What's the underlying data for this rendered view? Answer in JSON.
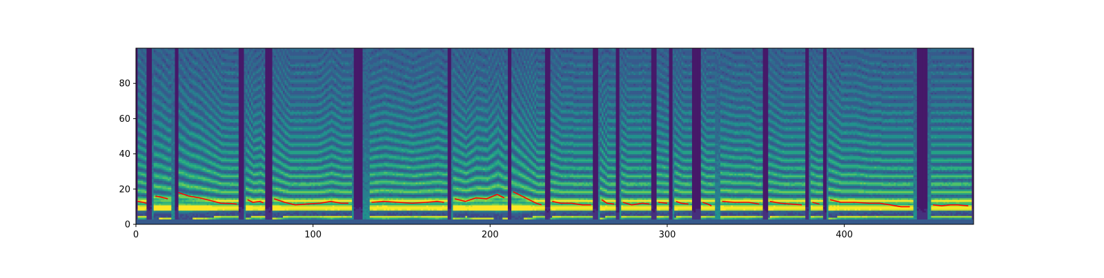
{
  "chart_data": {
    "type": "heatmap",
    "title": "",
    "xlabel": "",
    "ylabel": "",
    "xlim": [
      0,
      473
    ],
    "ylim": [
      0,
      100
    ],
    "x_ticks": [
      {
        "value": 0,
        "label": "0"
      },
      {
        "value": 100,
        "label": "100"
      },
      {
        "value": 200,
        "label": "200"
      },
      {
        "value": 300,
        "label": "300"
      },
      {
        "value": 400,
        "label": "400"
      }
    ],
    "y_ticks": [
      {
        "value": 0,
        "label": "0"
      },
      {
        "value": 20,
        "label": "20"
      },
      {
        "value": 40,
        "label": "40"
      },
      {
        "value": 60,
        "label": "60"
      },
      {
        "value": 80,
        "label": "80"
      }
    ],
    "colormap": "viridis",
    "grid": false,
    "heatmap_description": "mel spectrogram, 100 frequency bins by 473 frames",
    "pitch_series": {
      "color": "#ff0000",
      "segments": [
        [
          [
            1,
            13
          ],
          [
            4,
            12.5
          ],
          [
            6,
            12
          ]
        ],
        [
          [
            11,
            16
          ],
          [
            14,
            15.5
          ],
          [
            18,
            14.5
          ]
        ],
        [
          [
            24,
            18
          ],
          [
            30,
            16
          ],
          [
            36,
            15
          ],
          [
            42,
            13.5
          ],
          [
            48,
            12
          ],
          [
            54,
            11.8
          ],
          [
            57,
            11.5
          ]
        ],
        [
          [
            63,
            14
          ],
          [
            66,
            12.5
          ],
          [
            70,
            13
          ],
          [
            72,
            12.2
          ]
        ],
        [
          [
            78,
            14.5
          ],
          [
            84,
            12.5
          ],
          [
            90,
            11
          ],
          [
            96,
            11.5
          ],
          [
            104,
            12
          ],
          [
            110,
            13
          ],
          [
            116,
            12
          ],
          [
            120,
            12
          ]
        ],
        [
          [
            133,
            12.5
          ],
          [
            140,
            13
          ],
          [
            148,
            12.5
          ],
          [
            156,
            12
          ],
          [
            164,
            12.5
          ],
          [
            170,
            13
          ],
          [
            174,
            12.5
          ]
        ],
        [
          [
            180,
            14.5
          ],
          [
            186,
            13
          ],
          [
            192,
            15
          ],
          [
            198,
            14.5
          ],
          [
            204,
            17
          ],
          [
            208,
            15
          ]
        ],
        [
          [
            213,
            18.5
          ],
          [
            217,
            16.5
          ],
          [
            222,
            14
          ],
          [
            226,
            12
          ],
          [
            229,
            11
          ]
        ],
        [
          [
            235,
            13
          ],
          [
            240,
            12
          ],
          [
            246,
            12
          ],
          [
            252,
            11
          ],
          [
            257,
            11
          ]
        ],
        [
          [
            263,
            14
          ],
          [
            266,
            12
          ],
          [
            270,
            11.5
          ]
        ],
        [
          [
            275,
            12.5
          ],
          [
            280,
            11
          ],
          [
            286,
            12
          ],
          [
            290,
            11.5
          ]
        ],
        [
          [
            295,
            12.5
          ],
          [
            300,
            12
          ]
        ],
        [
          [
            305,
            13
          ],
          [
            308,
            12
          ],
          [
            312,
            11.5
          ]
        ],
        [
          [
            320,
            12.5
          ],
          [
            323,
            11.5
          ],
          [
            325,
            10.5
          ]
        ],
        [
          [
            331,
            13
          ],
          [
            338,
            12.5
          ],
          [
            346,
            12.5
          ],
          [
            352,
            11.5
          ]
        ],
        [
          [
            358,
            13
          ],
          [
            364,
            12
          ],
          [
            370,
            11.5
          ],
          [
            376,
            11
          ]
        ],
        [
          [
            382,
            12.5
          ],
          [
            386,
            11.5
          ]
        ],
        [
          [
            392,
            14
          ],
          [
            398,
            12.5
          ],
          [
            406,
            12.5
          ],
          [
            414,
            12
          ],
          [
            420,
            12
          ],
          [
            426,
            11
          ],
          [
            432,
            10
          ],
          [
            437,
            10
          ]
        ],
        [
          [
            450,
            11
          ],
          [
            455,
            10.5
          ],
          [
            460,
            11
          ],
          [
            464,
            11
          ],
          [
            470,
            10.5
          ]
        ]
      ]
    }
  }
}
